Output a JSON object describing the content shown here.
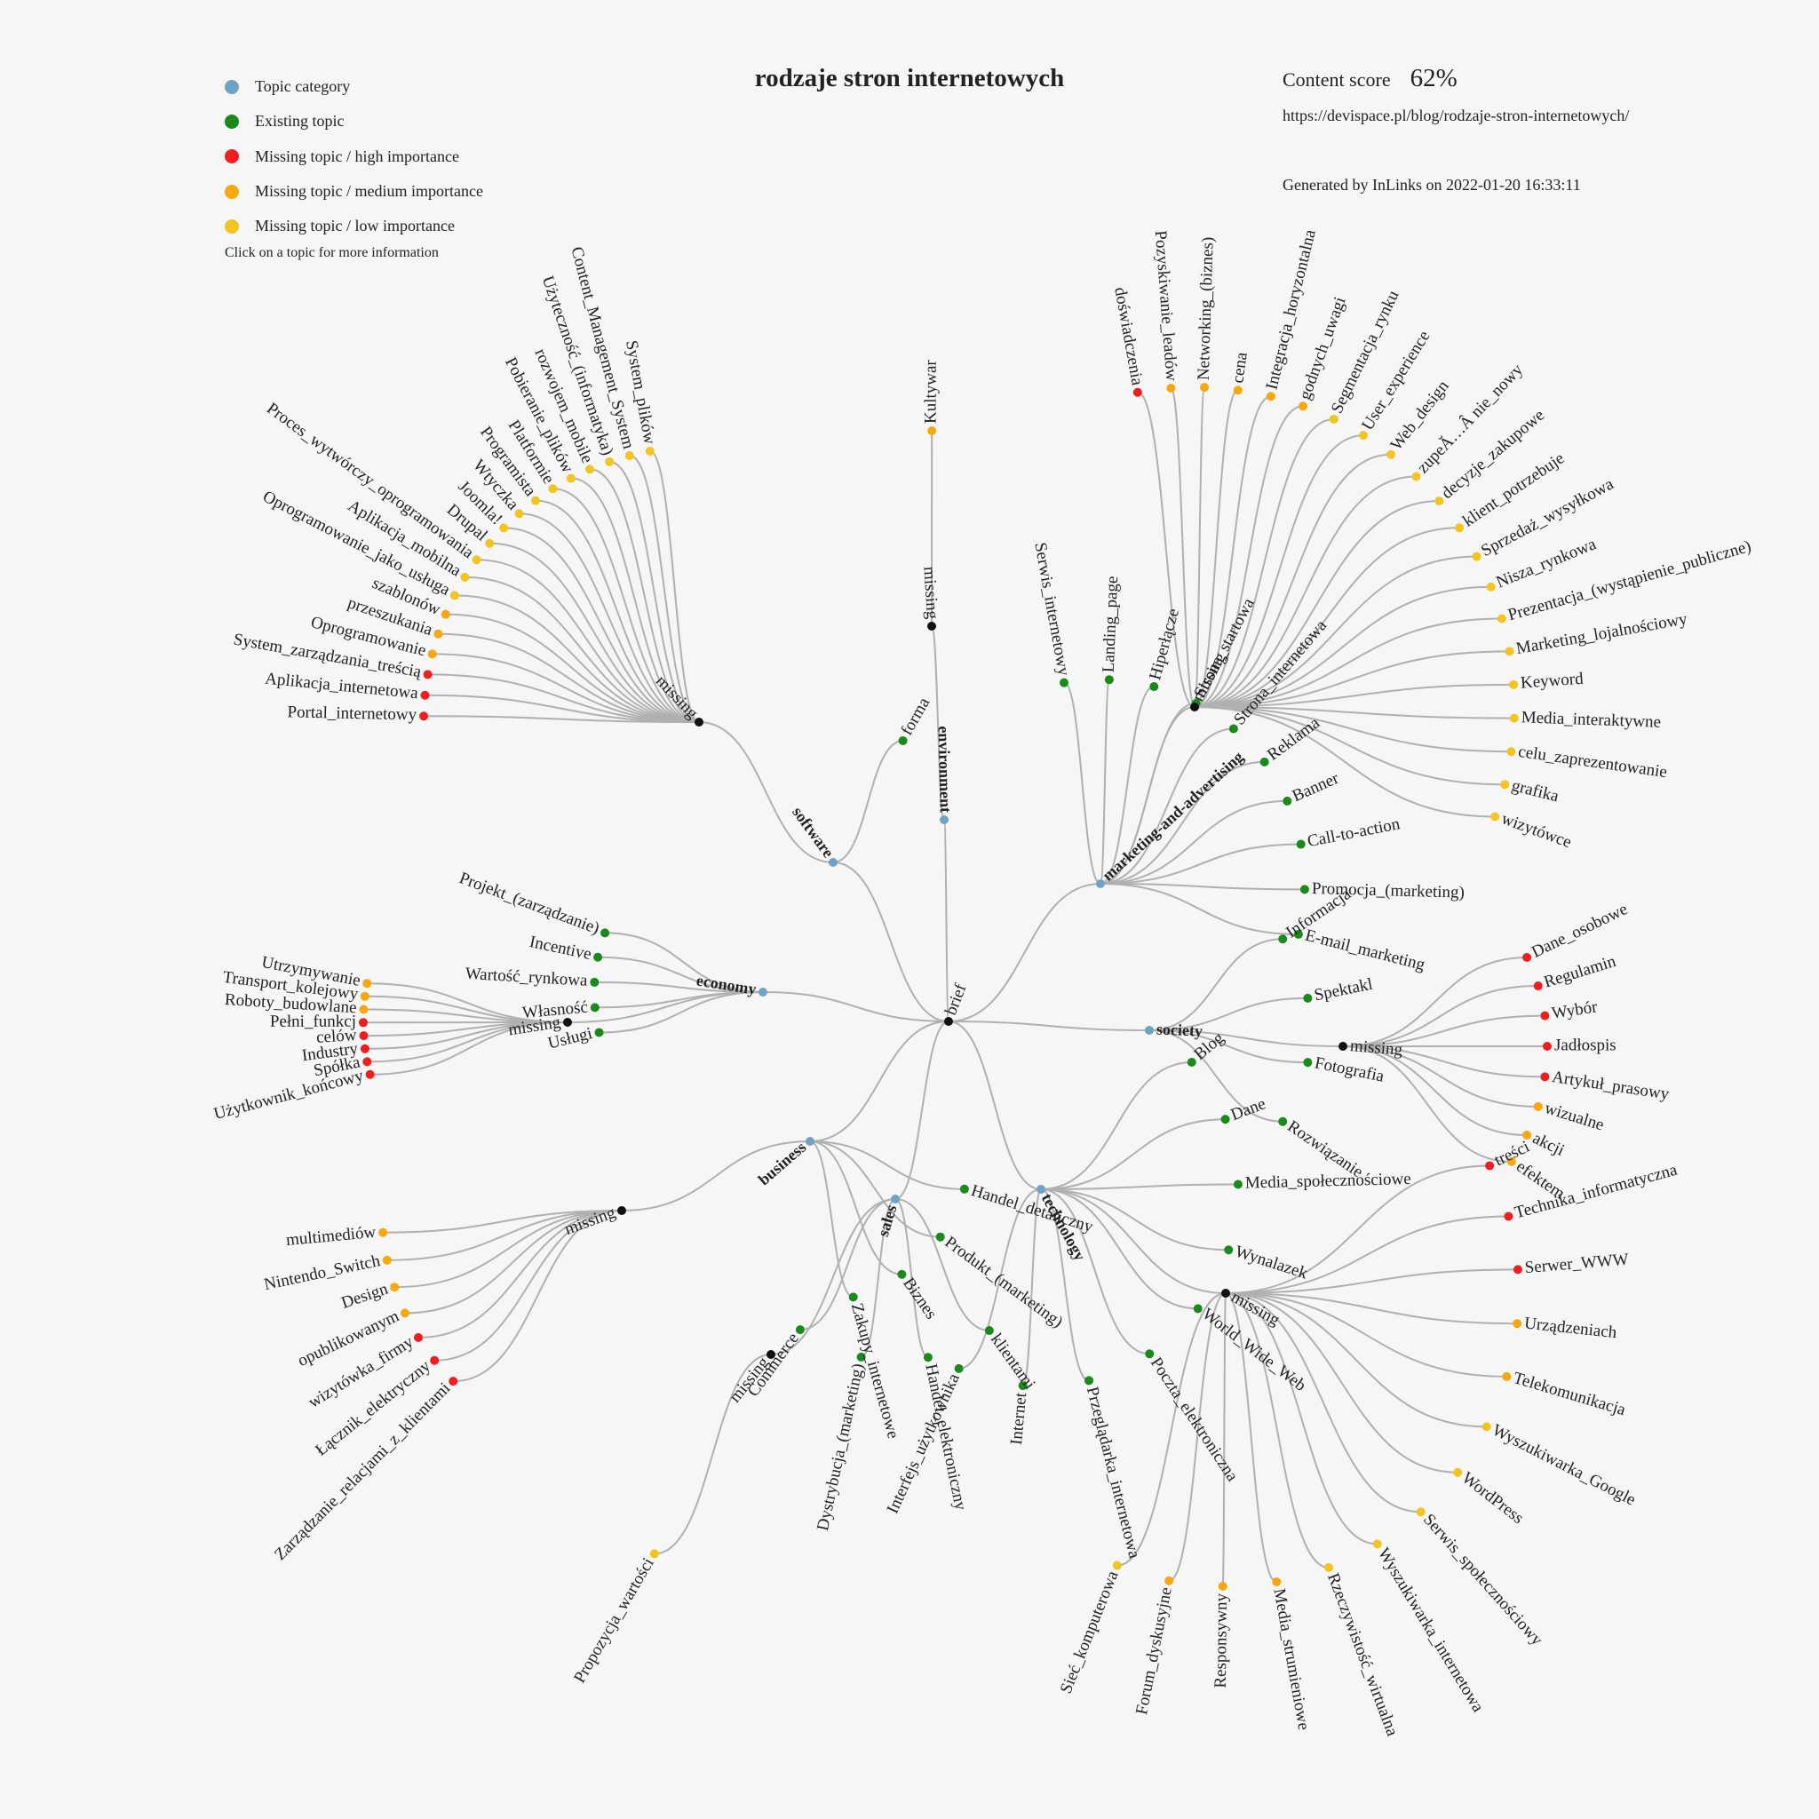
{
  "title": "rodzaje stron internetowych",
  "content_score_label": "Content score",
  "content_score_value": "62%",
  "url": "https://devispace.pl/blog/rodzaje-stron-internetowych/",
  "generated": "Generated by InLinks on 2022-01-20 16:33:11",
  "legend": {
    "items": [
      {
        "label": "Topic category",
        "color": "#6fa3c6"
      },
      {
        "label": "Existing topic",
        "color": "#1a8a1a"
      },
      {
        "label": "Missing topic / high importance",
        "color": "#f01e1e"
      },
      {
        "label": "Missing topic / medium importance",
        "color": "#f8a70f"
      },
      {
        "label": "Missing topic / low importance",
        "color": "#f4c520"
      }
    ],
    "hint": "Click on a topic for more information"
  },
  "colors": {
    "category": "#6fa3c6",
    "existing": "#1a8a1a",
    "high": "#f01e1e",
    "medium": "#f8a70f",
    "low": "#f4c520",
    "missing_hub": "#111111",
    "link": "#b0b0b0"
  },
  "tree": {
    "root_label": "brief",
    "categories": [
      {
        "label": "software",
        "children": [
          {
            "label": "forma",
            "status": "existing"
          },
          {
            "label": "missing",
            "status": "missing_hub",
            "children": [
              {
                "label": "System_plików",
                "status": "low"
              },
              {
                "label": "Content_Management_System",
                "status": "low"
              },
              {
                "label": "Użyteczność_(informatyka)",
                "status": "low"
              },
              {
                "label": "rozwojem_mobile",
                "status": "low"
              },
              {
                "label": "Pobieranie_plików",
                "status": "low"
              },
              {
                "label": "Platformie",
                "status": "low"
              },
              {
                "label": "Programista",
                "status": "low"
              },
              {
                "label": "Wtyczka",
                "status": "low"
              },
              {
                "label": "Joomla!",
                "status": "low"
              },
              {
                "label": "Drupal",
                "status": "low"
              },
              {
                "label": "Proces_wytwórczy_oprogramowania",
                "status": "low"
              },
              {
                "label": "Aplikacja_mobilna",
                "status": "low"
              },
              {
                "label": "Oprogramowanie_jako_usługa",
                "status": "low"
              },
              {
                "label": "szablonów",
                "status": "medium"
              },
              {
                "label": "przeszukania",
                "status": "medium"
              },
              {
                "label": "Oprogramowanie",
                "status": "medium"
              },
              {
                "label": "System_zarządzania_treścią",
                "status": "high"
              },
              {
                "label": "Aplikacja_internetowa",
                "status": "high"
              },
              {
                "label": "Portal_internetowy",
                "status": "high"
              }
            ]
          }
        ]
      },
      {
        "label": "environment",
        "children": [
          {
            "label": "missing",
            "status": "missing_hub",
            "children": [
              {
                "label": "Kultywar",
                "status": "medium"
              }
            ]
          }
        ]
      },
      {
        "label": "marketing-and-advertising",
        "children": [
          {
            "label": "Serwis_internetowy",
            "status": "existing"
          },
          {
            "label": "Landing_page",
            "status": "existing"
          },
          {
            "label": "Hiperłącze",
            "status": "existing"
          },
          {
            "label": "missing",
            "status": "missing_hub",
            "children": [
              {
                "label": "doświadczenia",
                "status": "high"
              },
              {
                "label": "Pozyskiwanie_leadów",
                "status": "medium"
              },
              {
                "label": "Networking_(biznes)",
                "status": "medium"
              },
              {
                "label": "cena",
                "status": "medium"
              },
              {
                "label": "Integracja_horyzontalna",
                "status": "medium"
              },
              {
                "label": "godnych_uwagi",
                "status": "medium"
              },
              {
                "label": "Segmentacja_rynku",
                "status": "low"
              },
              {
                "label": "User_experience",
                "status": "low"
              },
              {
                "label": "Web_design",
                "status": "low"
              },
              {
                "label": "zupeĂ…Â nie_nowy",
                "status": "low"
              },
              {
                "label": "decyzje_zakupowe",
                "status": "low"
              },
              {
                "label": "klient_potrzebuje",
                "status": "low"
              },
              {
                "label": "Sprzedaż_wysyłkowa",
                "status": "low"
              },
              {
                "label": "Nisza_rynkowa",
                "status": "low"
              },
              {
                "label": "Prezentacja_(wystąpienie_publiczne)",
                "status": "low"
              },
              {
                "label": "Marketing_lojalnościowy",
                "status": "low"
              },
              {
                "label": "Keyword",
                "status": "low"
              },
              {
                "label": "Media_interaktywne",
                "status": "low"
              },
              {
                "label": "celu_zaprezentowanie",
                "status": "low"
              },
              {
                "label": "grafika",
                "status": "low"
              },
              {
                "label": "wizytówce",
                "status": "low"
              }
            ]
          },
          {
            "label": "Strona_startowa",
            "status": "existing"
          },
          {
            "label": "Strona_internetowa",
            "status": "existing"
          },
          {
            "label": "Reklama",
            "status": "existing"
          },
          {
            "label": "Banner",
            "status": "existing"
          },
          {
            "label": "Call-to-action",
            "status": "existing"
          },
          {
            "label": "Promocja_(marketing)",
            "status": "existing"
          },
          {
            "label": "E-mail_marketing",
            "status": "existing"
          }
        ]
      },
      {
        "label": "society",
        "children": [
          {
            "label": "Informacja",
            "status": "existing"
          },
          {
            "label": "Spektakl",
            "status": "existing"
          },
          {
            "label": "missing",
            "status": "missing_hub",
            "children": [
              {
                "label": "Dane_osobowe",
                "status": "high"
              },
              {
                "label": "Regulamin",
                "status": "high"
              },
              {
                "label": "Wybór",
                "status": "high"
              },
              {
                "label": "Jadłospis",
                "status": "high"
              },
              {
                "label": "Artykuł_prasowy",
                "status": "high"
              },
              {
                "label": "wizualne",
                "status": "medium"
              },
              {
                "label": "akcji",
                "status": "medium"
              },
              {
                "label": "efektem",
                "status": "medium"
              }
            ]
          },
          {
            "label": "Fotografia",
            "status": "existing"
          },
          {
            "label": "Rozwiązanie",
            "status": "existing"
          }
        ]
      },
      {
        "label": "technology",
        "children": [
          {
            "label": "Blog",
            "status": "existing"
          },
          {
            "label": "missing",
            "status": "missing_hub",
            "children": [
              {
                "label": "treści",
                "status": "high"
              },
              {
                "label": "Technika_informatyczna",
                "status": "high"
              },
              {
                "label": "Serwer_WWW",
                "status": "high"
              },
              {
                "label": "Urządzeniach",
                "status": "medium"
              },
              {
                "label": "Telekomunikacja",
                "status": "medium"
              },
              {
                "label": "Wyszukiwarka_Google",
                "status": "low"
              },
              {
                "label": "WordPress",
                "status": "low"
              },
              {
                "label": "Serwis_społecznościowy",
                "status": "low"
              },
              {
                "label": "Wyszukiwarka_internetowa",
                "status": "low"
              },
              {
                "label": "Rzeczywistość_wirtualna",
                "status": "low"
              },
              {
                "label": "Media_strumieniowe",
                "status": "medium"
              },
              {
                "label": "Responsywny",
                "status": "medium"
              },
              {
                "label": "Forum_dyskusyjne",
                "status": "medium"
              },
              {
                "label": "Sieć_komputerowa",
                "status": "low"
              }
            ]
          },
          {
            "label": "Dane",
            "status": "existing"
          },
          {
            "label": "Media_społecznościowe",
            "status": "existing"
          },
          {
            "label": "Wynalazek",
            "status": "existing"
          },
          {
            "label": "World_Wide_Web",
            "status": "existing"
          },
          {
            "label": "Poczta_elektroniczna",
            "status": "existing"
          },
          {
            "label": "Przeglądarka_internetowa",
            "status": "existing"
          },
          {
            "label": "Internet",
            "status": "existing"
          },
          {
            "label": "Interfejs_użytkownika",
            "status": "existing"
          }
        ]
      },
      {
        "label": "sales",
        "children": [
          {
            "label": "klientami",
            "status": "existing"
          },
          {
            "label": "Handel_elektroniczny",
            "status": "existing"
          },
          {
            "label": "Dystrybucja_(marketing)",
            "status": "existing"
          },
          {
            "label": "Commerce",
            "status": "existing"
          },
          {
            "label": "missing",
            "status": "missing_hub",
            "children": [
              {
                "label": "Propozycja_wartości",
                "status": "low"
              }
            ]
          }
        ]
      },
      {
        "label": "business",
        "children": [
          {
            "label": "Handel_detaliczny",
            "status": "existing"
          },
          {
            "label": "Produkt_(marketing)",
            "status": "existing"
          },
          {
            "label": "Biznes",
            "status": "existing"
          },
          {
            "label": "Zakupy_internetowe",
            "status": "existing"
          },
          {
            "label": "missing",
            "status": "missing_hub",
            "children": [
              {
                "label": "Zarządzanie_relacjami_z_klientami",
                "status": "high"
              },
              {
                "label": "Łącznik_elektryczny",
                "status": "high"
              },
              {
                "label": "wizytówka_firmy",
                "status": "high"
              },
              {
                "label": "opublikowanym",
                "status": "medium"
              },
              {
                "label": "Design",
                "status": "medium"
              },
              {
                "label": "Nintendo_Switch",
                "status": "medium"
              },
              {
                "label": "multimediów",
                "status": "medium"
              }
            ]
          }
        ]
      },
      {
        "label": "economy",
        "children": [
          {
            "label": "Projekt_(zarządzanie)",
            "status": "existing"
          },
          {
            "label": "Incentive",
            "status": "existing"
          },
          {
            "label": "Wartość_rynkowa",
            "status": "existing"
          },
          {
            "label": "Własność",
            "status": "existing"
          },
          {
            "label": "missing",
            "status": "missing_hub",
            "children": [
              {
                "label": "Utrzymywanie",
                "status": "medium"
              },
              {
                "label": "Transport_kolejowy",
                "status": "medium"
              },
              {
                "label": "Roboty_budowlane",
                "status": "medium"
              },
              {
                "label": "Pełni_funkcj",
                "status": "high"
              },
              {
                "label": "celów",
                "status": "high"
              },
              {
                "label": "Industry",
                "status": "high"
              },
              {
                "label": "Spółka",
                "status": "high"
              },
              {
                "label": "Użytkownik_końcowy",
                "status": "high"
              }
            ]
          },
          {
            "label": "Usługi",
            "status": "existing"
          }
        ]
      }
    ]
  }
}
